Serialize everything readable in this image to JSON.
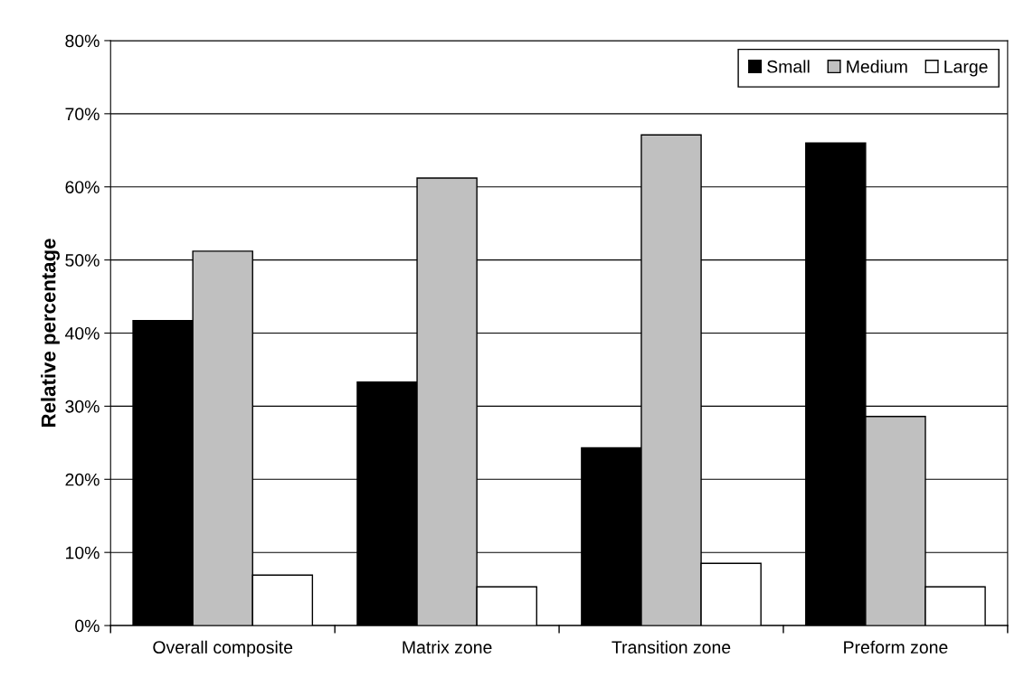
{
  "chart_data": {
    "type": "bar",
    "ylabel": "Relative percentage",
    "categories": [
      "Overall composite",
      "Matrix zone",
      "Transition zone",
      "Preform zone"
    ],
    "series": [
      {
        "name": "Small",
        "color": "#000000",
        "values": [
          41.7,
          33.3,
          24.3,
          66.0
        ]
      },
      {
        "name": "Medium",
        "color": "#c0c0c0",
        "values": [
          51.2,
          61.2,
          67.1,
          28.6
        ]
      },
      {
        "name": "Large",
        "color": "#ffffff",
        "values": [
          6.9,
          5.3,
          8.5,
          5.3
        ]
      }
    ],
    "ylim": [
      0,
      80
    ],
    "yticks": [
      {
        "value": 0,
        "label": "0%"
      },
      {
        "value": 10,
        "label": "10%"
      },
      {
        "value": 20,
        "label": "20%"
      },
      {
        "value": 30,
        "label": "30%"
      },
      {
        "value": 40,
        "label": "40%"
      },
      {
        "value": 50,
        "label": "50%"
      },
      {
        "value": 60,
        "label": "60%"
      },
      {
        "value": 70,
        "label": "70%"
      },
      {
        "value": 80,
        "label": "80%"
      }
    ],
    "grid": "y",
    "legend": "top right"
  }
}
